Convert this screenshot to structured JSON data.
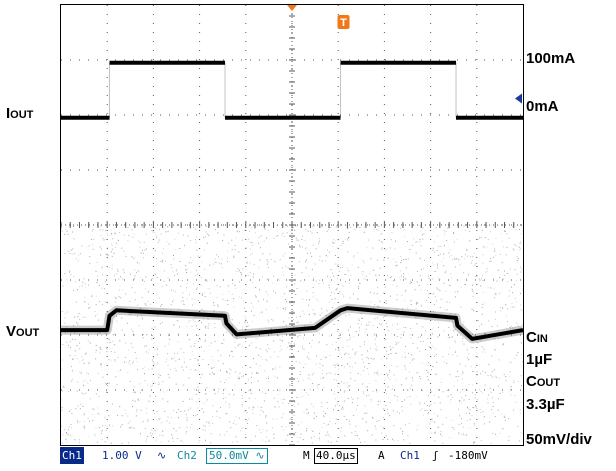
{
  "labels": {
    "iout_main": "I",
    "iout_sub": "OUT",
    "vout_main": "V",
    "vout_sub": "OUT",
    "i_high": "100mA",
    "i_low": "0mA",
    "cin_main": "C",
    "cin_sub": "IN",
    "cin_val": "1µF",
    "cout_main": "C",
    "cout_sub": "OUT",
    "cout_val": "3.3µF",
    "vdiv": "50mV/div",
    "trigger_marker": "T"
  },
  "status_bar": {
    "ch1": "Ch1",
    "ch1_scale": "1.00 V",
    "ch1_coupling": "∿",
    "ch2": "Ch2",
    "ch2_scale": "50.0mV",
    "ch2_coupling": "∿",
    "timebase": "M",
    "timebase_value": "40.0µs",
    "trigger_mode": "A",
    "trigger_source": "Ch1",
    "trigger_slope": "ʃ",
    "trigger_level": "-180mV"
  },
  "colors": {
    "trace": "#000000",
    "grid": "#555555",
    "trigger_marker": "#f07818",
    "ch1_badge": "#0a2a8a",
    "ch2_badge": "#0d8a9a",
    "ground_marker": "#1a3aa0"
  },
  "chart_data": {
    "type": "line",
    "grid": true,
    "x_divisions": 10,
    "y_divisions": 8,
    "time_per_div_us": 40,
    "series": [
      {
        "name": "IOUT",
        "unit": "mA",
        "x_div": [
          0,
          1.05,
          1.05,
          3.55,
          3.55,
          6.05,
          6.05,
          8.55,
          8.55,
          10
        ],
        "values": [
          0,
          0,
          100,
          100,
          0,
          0,
          100,
          100,
          0,
          0
        ]
      },
      {
        "name": "VOUT",
        "unit": "mV (AC, 50mV/div)",
        "x_div": [
          0,
          1.0,
          1.05,
          1.2,
          3.55,
          3.58,
          3.8,
          5.5,
          6.05,
          6.2,
          8.55,
          8.58,
          8.9,
          10
        ],
        "values": [
          -18,
          -18,
          -5,
          0,
          -5,
          -12,
          -22,
          -16,
          0,
          2,
          -7,
          -14,
          -26,
          -18
        ]
      }
    ]
  }
}
